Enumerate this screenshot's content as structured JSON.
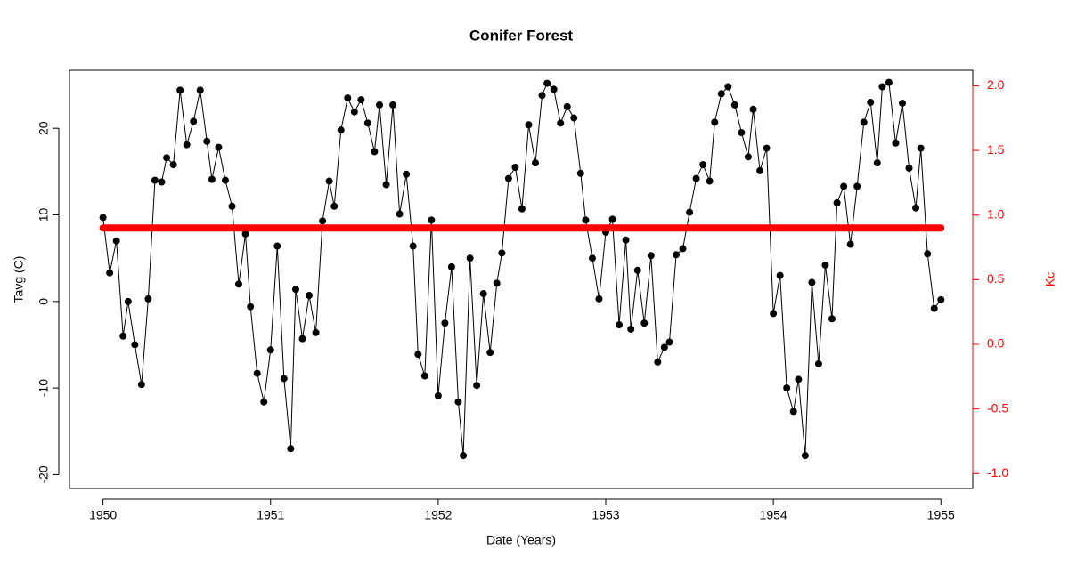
{
  "chart_data": {
    "type": "line",
    "title": "Conifer Forest",
    "x_label": "Date (Years)",
    "y_label": "Tavg (C)",
    "y2_label": "Kc",
    "x": [
      1950,
      1950.04,
      1950.08,
      1950.12,
      1950.15,
      1950.19,
      1950.23,
      1950.27,
      1950.31,
      1950.35,
      1950.38,
      1950.42,
      1950.46,
      1950.5,
      1950.54,
      1950.58,
      1950.62,
      1950.65,
      1950.69,
      1950.73,
      1950.77,
      1950.81,
      1950.85,
      1950.88,
      1950.92,
      1950.96,
      1951,
      1951.04,
      1951.08,
      1951.12,
      1951.15,
      1951.19,
      1951.23,
      1951.27,
      1951.31,
      1951.35,
      1951.38,
      1951.42,
      1951.46,
      1951.5,
      1951.54,
      1951.58,
      1951.62,
      1951.65,
      1951.69,
      1951.73,
      1951.77,
      1951.81,
      1951.85,
      1951.88,
      1951.92,
      1951.96,
      1952,
      1952.04,
      1952.08,
      1952.12,
      1952.15,
      1952.19,
      1952.23,
      1952.27,
      1952.31,
      1952.35,
      1952.38,
      1952.42,
      1952.46,
      1952.5,
      1952.54,
      1952.58,
      1952.62,
      1952.65,
      1952.69,
      1952.73,
      1952.77,
      1952.81,
      1952.85,
      1952.88,
      1952.92,
      1952.96,
      1953,
      1953.04,
      1953.08,
      1953.12,
      1953.15,
      1953.19,
      1953.23,
      1953.27,
      1953.31,
      1953.35,
      1953.38,
      1953.42,
      1953.46,
      1953.5,
      1953.54,
      1953.58,
      1953.62,
      1953.65,
      1953.69,
      1953.73,
      1953.77,
      1953.81,
      1953.85,
      1953.88,
      1953.92,
      1953.96,
      1954,
      1954.04,
      1954.08,
      1954.12,
      1954.15,
      1954.19,
      1954.23,
      1954.27,
      1954.31,
      1954.35,
      1954.38,
      1954.42,
      1954.46,
      1954.5,
      1954.54,
      1954.58,
      1954.62,
      1954.65,
      1954.69,
      1954.73,
      1954.77,
      1954.81,
      1954.85,
      1954.88,
      1954.92,
      1954.96,
      1955
    ],
    "series": [
      {
        "color": "#000000",
        "values": [
          9.7,
          3.3,
          7,
          -4,
          0,
          -5,
          -9.6,
          0.3,
          14,
          13.8,
          16.6,
          15.8,
          24.4,
          18.1,
          20.8,
          24.4,
          18.5,
          14.1,
          17.8,
          14,
          11,
          2,
          7.8,
          -0.6,
          -8.3,
          -11.6,
          -5.6,
          6.4,
          -8.9,
          -17,
          1.4,
          -4.3,
          0.7,
          -3.6,
          9.3,
          13.9,
          11,
          19.8,
          23.5,
          21.9,
          23.3,
          20.6,
          17.3,
          22.7,
          13.5,
          22.7,
          10.1,
          14.7,
          6.4,
          -6.1,
          -8.6,
          9.4,
          -10.9,
          -2.5,
          4,
          -11.6,
          -17.8,
          5,
          -9.7,
          0.9,
          -5.9,
          2.1,
          5.6,
          14.2,
          15.5,
          10.7,
          20.4,
          16,
          23.8,
          25.2,
          24.5,
          20.6,
          22.5,
          21.2,
          14.8,
          9.4,
          5,
          0.3,
          8,
          9.5,
          -2.7,
          7.1,
          -3.2,
          3.6,
          -2.5,
          5.3,
          -7,
          -5.3,
          -4.7,
          5.4,
          6.1,
          10.3,
          14.2,
          15.8,
          13.9,
          20.7,
          24,
          24.8,
          22.7,
          19.5,
          16.7,
          22.2,
          15.1,
          17.7,
          -1.4,
          3,
          -10,
          -12.7,
          -9,
          -17.8,
          2.2,
          -7.2,
          4.2,
          -2,
          11.4,
          13.3,
          6.6,
          13.3,
          20.7,
          23,
          16,
          24.8,
          25.3,
          18.3,
          22.9,
          15.4,
          10.8,
          17.7,
          5.5,
          -0.8,
          0.2
        ]
      },
      {
        "color": "#ff0000",
        "axis": "y2",
        "x": [
          1950,
          1955
        ],
        "values": [
          0.9,
          0.9
        ]
      }
    ],
    "xlim": [
      1949.8,
      1955.19
    ],
    "xticks": [
      1950,
      1951,
      1952,
      1953,
      1954,
      1955
    ],
    "ylim": [
      -21.6,
      26.7
    ],
    "yticks": [
      -20,
      -10,
      0,
      10,
      20
    ],
    "y2lim": [
      -1.115,
      2.12
    ],
    "y2ticks": [
      {
        "value": -1,
        "label": "-1.0"
      },
      -0.5,
      {
        "value": 0,
        "label": "0.0"
      },
      0.5,
      {
        "value": 1,
        "label": "1.0"
      },
      1.5,
      {
        "value": 2,
        "label": "2.0"
      }
    ],
    "y2_color": "#ff0000"
  }
}
